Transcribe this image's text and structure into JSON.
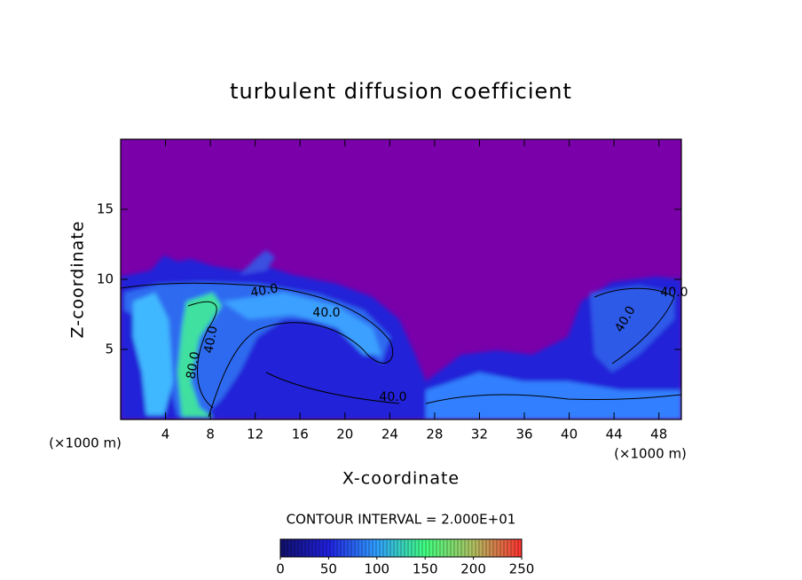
{
  "chart_data": {
    "type": "contour",
    "title": "turbulent diffusion coefficient",
    "x_label": "X-coordinate",
    "y_label": "Z-coordinate",
    "x_unit": "(×1000 m)",
    "y_unit": "(×1000 m)",
    "xlim": [
      0,
      50
    ],
    "ylim": [
      0,
      20
    ],
    "xticks": [
      4,
      8,
      12,
      16,
      20,
      24,
      28,
      32,
      36,
      40,
      44,
      48
    ],
    "yticks": [
      5,
      10,
      15
    ],
    "contour_interval": "CONTOUR INTERVAL = 2.000E+01",
    "contour_labels": [
      "40.0",
      "40.0",
      "40.0",
      "40.0",
      "40.0",
      "80.0",
      "40.0"
    ],
    "colorbar": {
      "lim": [
        0,
        250
      ],
      "ticks": [
        0,
        50,
        100,
        150,
        200,
        250
      ],
      "colors": [
        "#10106a",
        "#2020e0",
        "#30a0ff",
        "#40ff80",
        "#b0c060",
        "#ff3030"
      ]
    }
  }
}
